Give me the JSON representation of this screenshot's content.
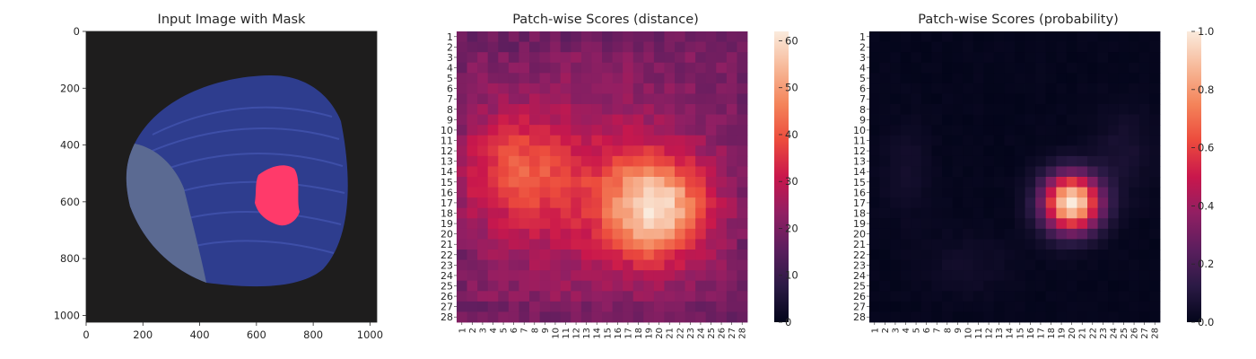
{
  "chart_data": [
    {
      "type": "image",
      "title": "Input Image with Mask",
      "xlim": [
        0,
        1024
      ],
      "ylim": [
        1024,
        0
      ],
      "xticks": [
        "0",
        "200",
        "400",
        "600",
        "800",
        "1000"
      ],
      "yticks": [
        "0",
        "200",
        "400",
        "600",
        "800",
        "1000"
      ],
      "colors": {
        "background": "#1e1d1d",
        "object": "#2e3d8e",
        "mask": "#ff3a6a"
      }
    },
    {
      "type": "heatmap",
      "title": "Patch-wise Scores (distance)",
      "rows": 28,
      "cols": 28,
      "row_labels": [
        "1",
        "2",
        "3",
        "4",
        "5",
        "6",
        "7",
        "8",
        "9",
        "10",
        "11",
        "12",
        "13",
        "14",
        "15",
        "16",
        "17",
        "18",
        "19",
        "20",
        "21",
        "22",
        "23",
        "24",
        "25",
        "26",
        "27",
        "28"
      ],
      "col_labels": [
        "1",
        "2",
        "3",
        "4",
        "5",
        "6",
        "7",
        "8",
        "9",
        "10",
        "11",
        "12",
        "13",
        "14",
        "15",
        "16",
        "17",
        "18",
        "19",
        "20",
        "21",
        "22",
        "23",
        "24",
        "25",
        "26",
        "27",
        "28"
      ],
      "colorbar": {
        "min": 0,
        "max": 62,
        "ticks": [
          "0",
          "10",
          "20",
          "30",
          "40",
          "50",
          "60"
        ]
      },
      "colormap": "rocket",
      "baseline": 20,
      "peak": {
        "row": 17.5,
        "col": 19.5,
        "value": 62,
        "spread": 3.2
      },
      "secondary": {
        "row": 13.5,
        "col": 6,
        "value": 14,
        "spread": 3.5
      }
    },
    {
      "type": "heatmap",
      "title": "Patch-wise Scores (probability)",
      "rows": 28,
      "cols": 28,
      "row_labels": [
        "1",
        "2",
        "3",
        "4",
        "5",
        "6",
        "7",
        "8",
        "9",
        "10",
        "11",
        "12",
        "13",
        "14",
        "15",
        "16",
        "17",
        "18",
        "19",
        "20",
        "21",
        "22",
        "23",
        "24",
        "25",
        "26",
        "27",
        "28"
      ],
      "col_labels": [
        "1",
        "2",
        "3",
        "4",
        "5",
        "6",
        "7",
        "8",
        "9",
        "10",
        "11",
        "12",
        "13",
        "14",
        "15",
        "16",
        "17",
        "18",
        "19",
        "20",
        "21",
        "22",
        "23",
        "24",
        "25",
        "26",
        "27",
        "28"
      ],
      "colorbar": {
        "min": 0.0,
        "max": 1.0,
        "ticks": [
          "0.0",
          "0.2",
          "0.4",
          "0.6",
          "0.8",
          "1.0"
        ]
      },
      "colormap": "rocket",
      "peak": {
        "row": 17,
        "col": 20,
        "value": 1.0,
        "spread": 1.9
      }
    }
  ]
}
